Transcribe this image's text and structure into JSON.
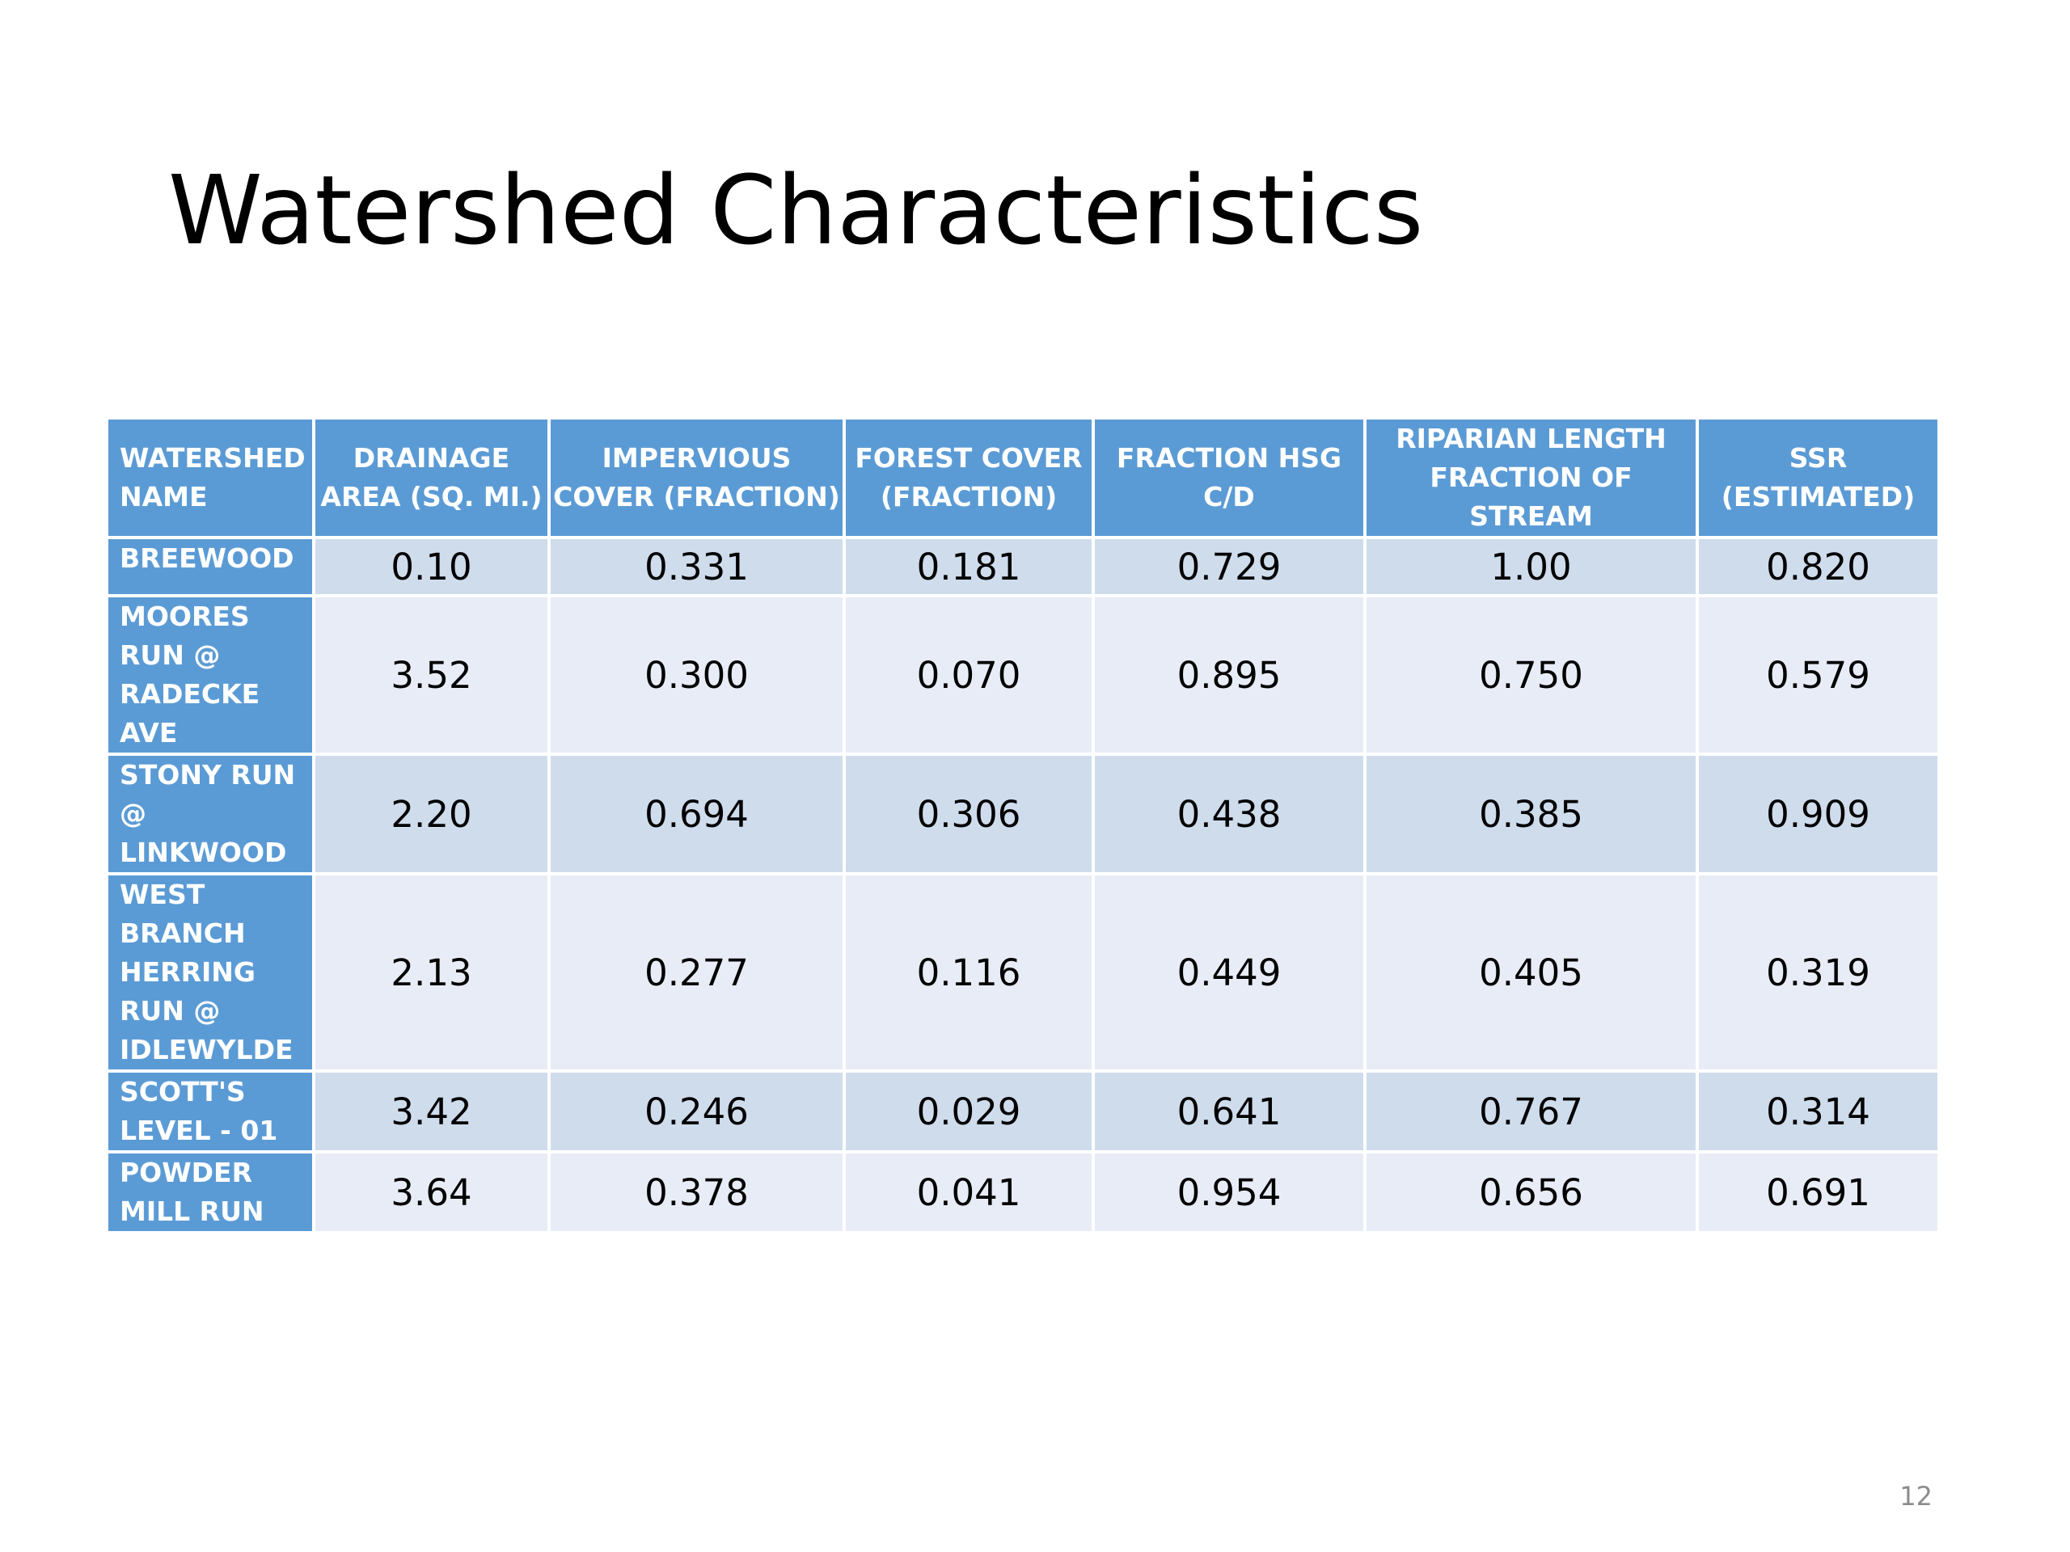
{
  "slide": {
    "title": "Watershed Characteristics",
    "page_number": "12"
  },
  "table": {
    "headers": [
      {
        "line1": "WATERSHED",
        "line2": "NAME"
      },
      {
        "line1": "DRAINAGE",
        "line2": "AREA (SQ. MI.)"
      },
      {
        "line1": "IMPERVIOUS",
        "line2": "COVER (FRACTION)"
      },
      {
        "line1": "FOREST COVER",
        "line2": "(FRACTION)"
      },
      {
        "line1": "FRACTION HSG",
        "line2": "C/D"
      },
      {
        "line1": "RIPARIAN LENGTH",
        "line2": "FRACTION OF STREAM"
      },
      {
        "line1": "SSR",
        "line2": "(ESTIMATED)"
      }
    ],
    "rows": [
      {
        "name_lines": [
          "BREEWOOD"
        ],
        "values": [
          "0.10",
          "0.331",
          "0.181",
          "0.729",
          "1.00",
          "0.820"
        ]
      },
      {
        "name_lines": [
          "MOORES",
          "RUN @",
          "RADECKE",
          "AVE"
        ],
        "values": [
          "3.52",
          "0.300",
          "0.070",
          "0.895",
          "0.750",
          "0.579"
        ]
      },
      {
        "name_lines": [
          "STONY RUN",
          "@",
          "LINKWOOD"
        ],
        "values": [
          "2.20",
          "0.694",
          "0.306",
          "0.438",
          "0.385",
          "0.909"
        ]
      },
      {
        "name_lines": [
          "WEST",
          "BRANCH",
          "HERRING",
          "RUN @",
          "IDLEWYLDE"
        ],
        "values": [
          "2.13",
          "0.277",
          "0.116",
          "0.449",
          "0.405",
          "0.319"
        ]
      },
      {
        "name_lines": [
          "SCOTT'S",
          "LEVEL - 01"
        ],
        "values": [
          "3.42",
          "0.246",
          "0.029",
          "0.641",
          "0.767",
          "0.314"
        ]
      },
      {
        "name_lines": [
          "POWDER",
          "MILL RUN"
        ],
        "values": [
          "3.64",
          "0.378",
          "0.041",
          "0.954",
          "0.656",
          "0.691"
        ]
      }
    ]
  },
  "colors": {
    "header_background": "#5b9bd5",
    "row_dark": "#cfdcec",
    "row_light": "#e8ecf6"
  }
}
